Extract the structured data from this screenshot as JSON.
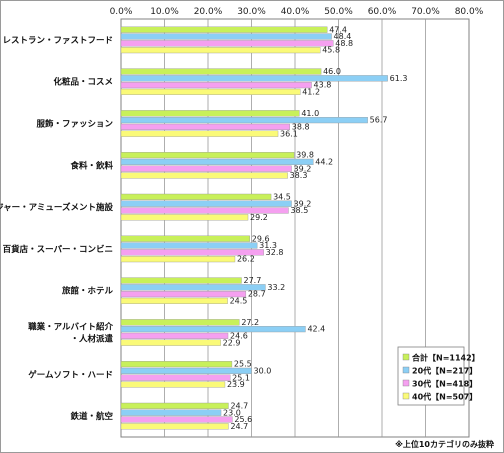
{
  "chart_data": {
    "type": "bar",
    "orientation": "horizontal",
    "categories": [
      "レストラン・ファストフード",
      "化粧品・コスメ",
      "服飾・ファッション",
      "食料・飲料",
      "レジャー・アミューズメント施設",
      "百貨店・スーパー・コンビニ",
      "旅館・ホテル",
      [
        "職業・アルバイト紹介",
        "・人材派遣"
      ],
      "ゲームソフト・ハード",
      "鉄道・航空"
    ],
    "series": [
      {
        "name": "合計【N=1142】",
        "color": "#c8f05a",
        "values": [
          47.4,
          46.0,
          41.0,
          39.8,
          34.5,
          29.6,
          27.7,
          27.2,
          25.5,
          24.7
        ]
      },
      {
        "name": "20代【N=217】",
        "color": "#8ccff5",
        "values": [
          48.4,
          61.3,
          56.7,
          44.2,
          39.2,
          31.3,
          33.2,
          42.4,
          30.0,
          23.0
        ]
      },
      {
        "name": "30代【N=418】",
        "color": "#f5a0f0",
        "values": [
          48.8,
          43.8,
          38.8,
          39.2,
          38.5,
          32.8,
          28.7,
          24.6,
          25.1,
          25.6
        ]
      },
      {
        "name": "40代【N=507】",
        "color": "#fafa78",
        "values": [
          45.8,
          41.2,
          36.1,
          38.3,
          29.2,
          26.2,
          24.5,
          22.9,
          23.9,
          24.7
        ]
      }
    ],
    "xlim": [
      0,
      80
    ],
    "xticks": [
      "0.0%",
      "10.0%",
      "20.0%",
      "30.0%",
      "40.0%",
      "50.0%",
      "60.0%",
      "70.0%",
      "80.0%"
    ],
    "grid": true,
    "legend_position": "bottom-right",
    "note": "※上位10カテゴリのみ抜粋"
  }
}
